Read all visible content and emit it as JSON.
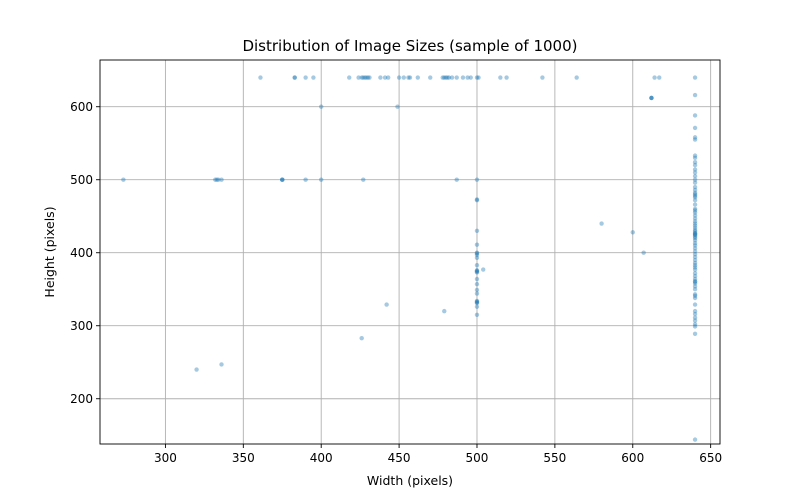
{
  "chart_data": {
    "type": "scatter",
    "title": "Distribution of Image Sizes (sample of 1000)",
    "xlabel": "Width (pixels)",
    "ylabel": "Height (pixels)",
    "xlim": [
      258,
      656
    ],
    "ylim": [
      138,
      664
    ],
    "xticks": [
      300,
      350,
      400,
      450,
      500,
      550,
      600,
      650
    ],
    "yticks": [
      200,
      300,
      400,
      500,
      600
    ],
    "grid": true,
    "color": "#1f77b4",
    "points": [
      [
        361,
        640
      ],
      [
        383,
        640
      ],
      [
        383,
        640
      ],
      [
        390,
        640
      ],
      [
        395,
        640
      ],
      [
        418,
        640
      ],
      [
        424,
        640
      ],
      [
        426,
        640
      ],
      [
        427,
        640
      ],
      [
        428,
        640
      ],
      [
        429,
        640
      ],
      [
        430,
        640
      ],
      [
        431,
        640
      ],
      [
        438,
        640
      ],
      [
        441,
        640
      ],
      [
        443,
        640
      ],
      [
        450,
        640
      ],
      [
        453,
        640
      ],
      [
        456,
        640
      ],
      [
        457,
        640
      ],
      [
        462,
        640
      ],
      [
        470,
        640
      ],
      [
        478,
        640
      ],
      [
        479,
        640
      ],
      [
        480,
        640
      ],
      [
        481,
        640
      ],
      [
        482,
        640
      ],
      [
        484,
        640
      ],
      [
        487,
        640
      ],
      [
        491,
        640
      ],
      [
        494,
        640
      ],
      [
        496,
        640
      ],
      [
        500,
        640
      ],
      [
        501,
        640
      ],
      [
        515,
        640
      ],
      [
        519,
        640
      ],
      [
        542,
        640
      ],
      [
        564,
        640
      ],
      [
        614,
        640
      ],
      [
        617,
        640
      ],
      [
        640,
        640
      ],
      [
        400,
        600
      ],
      [
        449,
        600
      ],
      [
        612,
        612
      ],
      [
        612,
        612
      ],
      [
        612,
        612
      ],
      [
        640,
        616
      ],
      [
        640,
        588
      ],
      [
        640,
        571
      ],
      [
        640,
        558
      ],
      [
        640,
        555
      ],
      [
        273,
        500
      ],
      [
        332,
        500
      ],
      [
        333,
        500
      ],
      [
        334,
        500
      ],
      [
        336,
        500
      ],
      [
        375,
        500
      ],
      [
        375,
        500
      ],
      [
        375,
        500
      ],
      [
        390,
        500
      ],
      [
        400,
        500
      ],
      [
        427,
        500
      ],
      [
        487,
        500
      ],
      [
        500,
        500
      ],
      [
        500,
        473
      ],
      [
        500,
        472
      ],
      [
        500,
        430
      ],
      [
        500,
        411
      ],
      [
        500,
        400
      ],
      [
        500,
        399
      ],
      [
        500,
        397
      ],
      [
        500,
        393
      ],
      [
        500,
        383
      ],
      [
        500,
        376
      ],
      [
        500,
        375
      ],
      [
        500,
        374
      ],
      [
        500,
        373
      ],
      [
        500,
        364
      ],
      [
        500,
        357
      ],
      [
        500,
        349
      ],
      [
        500,
        344
      ],
      [
        500,
        334
      ],
      [
        500,
        333
      ],
      [
        500,
        332
      ],
      [
        500,
        331
      ],
      [
        500,
        326
      ],
      [
        500,
        315
      ],
      [
        504,
        377
      ],
      [
        580,
        440
      ],
      [
        600,
        428
      ],
      [
        607,
        400
      ],
      [
        442,
        329
      ],
      [
        479,
        320
      ],
      [
        426,
        283
      ],
      [
        320,
        240
      ],
      [
        336,
        247
      ],
      [
        640,
        533
      ],
      [
        640,
        530
      ],
      [
        640,
        524
      ],
      [
        640,
        520
      ],
      [
        640,
        514
      ],
      [
        640,
        510
      ],
      [
        640,
        505
      ],
      [
        640,
        500
      ],
      [
        640,
        496
      ],
      [
        640,
        490
      ],
      [
        640,
        486
      ],
      [
        640,
        482
      ],
      [
        640,
        480
      ],
      [
        640,
        478
      ],
      [
        640,
        476
      ],
      [
        640,
        472
      ],
      [
        640,
        466
      ],
      [
        640,
        460
      ],
      [
        640,
        458
      ],
      [
        640,
        455
      ],
      [
        640,
        451
      ],
      [
        640,
        447
      ],
      [
        640,
        443
      ],
      [
        640,
        440
      ],
      [
        640,
        437
      ],
      [
        640,
        434
      ],
      [
        640,
        431
      ],
      [
        640,
        429
      ],
      [
        640,
        427
      ],
      [
        640,
        426
      ],
      [
        640,
        425
      ],
      [
        640,
        424
      ],
      [
        640,
        422
      ],
      [
        640,
        420
      ],
      [
        640,
        417
      ],
      [
        640,
        413
      ],
      [
        640,
        410
      ],
      [
        640,
        406
      ],
      [
        640,
        402
      ],
      [
        640,
        398
      ],
      [
        640,
        394
      ],
      [
        640,
        390
      ],
      [
        640,
        386
      ],
      [
        640,
        383
      ],
      [
        640,
        380
      ],
      [
        640,
        377
      ],
      [
        640,
        372
      ],
      [
        640,
        368
      ],
      [
        640,
        364
      ],
      [
        640,
        361
      ],
      [
        640,
        360
      ],
      [
        640,
        358
      ],
      [
        640,
        354
      ],
      [
        640,
        350
      ],
      [
        640,
        343
      ],
      [
        640,
        341
      ],
      [
        640,
        338
      ],
      [
        640,
        329
      ],
      [
        640,
        320
      ],
      [
        640,
        316
      ],
      [
        640,
        311
      ],
      [
        640,
        307
      ],
      [
        640,
        302
      ],
      [
        640,
        299
      ],
      [
        640,
        289
      ],
      [
        640,
        144
      ]
    ]
  }
}
